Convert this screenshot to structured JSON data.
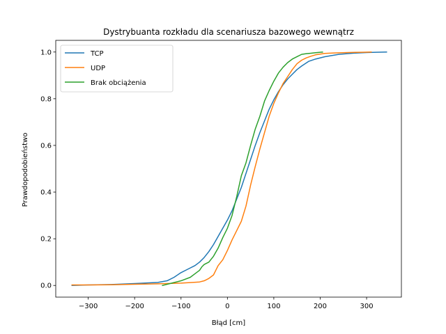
{
  "chart_data": {
    "type": "line",
    "title": "Dystrybuanta rozkładu dla scenariusza bazowego wewnątrz",
    "xlabel": "Błąd [cm]",
    "ylabel": "Prawdopodobieństwo",
    "xlim": [
      -370,
      375
    ],
    "ylim": [
      -0.05,
      1.05
    ],
    "xticks": [
      -300,
      -200,
      -100,
      0,
      100,
      200,
      300
    ],
    "xtick_labels": [
      "−300",
      "−200",
      "−100",
      "0",
      "100",
      "200",
      "300"
    ],
    "yticks": [
      0.0,
      0.2,
      0.4,
      0.6,
      0.8,
      1.0
    ],
    "ytick_labels": [
      "0.0",
      "0.2",
      "0.4",
      "0.6",
      "0.8",
      "1.0"
    ],
    "grid": false,
    "legend_position": "top-left",
    "series": [
      {
        "name": "TCP",
        "color": "#1f77b4",
        "x": [
          -335,
          -300,
          -250,
          -200,
          -150,
          -130,
          -115,
          -100,
          -85,
          -70,
          -60,
          -50,
          -40,
          -30,
          -20,
          -10,
          0,
          10,
          20,
          30,
          40,
          50,
          60,
          70,
          80,
          90,
          100,
          110,
          120,
          130,
          140,
          150,
          160,
          175,
          190,
          210,
          240,
          270,
          300,
          320,
          343
        ],
        "y": [
          0.0,
          0.002,
          0.004,
          0.008,
          0.013,
          0.02,
          0.035,
          0.055,
          0.07,
          0.085,
          0.1,
          0.12,
          0.145,
          0.175,
          0.21,
          0.245,
          0.28,
          0.32,
          0.37,
          0.42,
          0.48,
          0.54,
          0.6,
          0.655,
          0.705,
          0.755,
          0.795,
          0.83,
          0.86,
          0.885,
          0.905,
          0.925,
          0.94,
          0.96,
          0.97,
          0.98,
          0.99,
          0.995,
          0.998,
          0.999,
          1.0
        ]
      },
      {
        "name": "UDP",
        "color": "#ff7f0e",
        "x": [
          -335,
          -300,
          -250,
          -200,
          -150,
          -100,
          -75,
          -60,
          -50,
          -40,
          -30,
          -20,
          -10,
          0,
          10,
          20,
          30,
          40,
          50,
          60,
          70,
          80,
          90,
          100,
          110,
          120,
          130,
          140,
          150,
          160,
          170,
          180,
          190,
          200,
          210,
          230,
          260,
          290,
          310
        ],
        "y": [
          0.002,
          0.002,
          0.003,
          0.005,
          0.007,
          0.01,
          0.013,
          0.015,
          0.02,
          0.03,
          0.045,
          0.085,
          0.11,
          0.15,
          0.195,
          0.235,
          0.275,
          0.34,
          0.43,
          0.51,
          0.585,
          0.655,
          0.725,
          0.78,
          0.825,
          0.865,
          0.895,
          0.925,
          0.95,
          0.965,
          0.975,
          0.982,
          0.988,
          0.991,
          0.994,
          0.996,
          0.998,
          0.999,
          1.0
        ]
      },
      {
        "name": "Brak obciążenia",
        "color": "#2ca02c",
        "x": [
          -140,
          -120,
          -100,
          -80,
          -70,
          -60,
          -55,
          -50,
          -40,
          -30,
          -20,
          -10,
          0,
          10,
          20,
          30,
          40,
          50,
          60,
          70,
          80,
          90,
          100,
          110,
          120,
          130,
          140,
          150,
          160,
          170,
          180,
          190,
          200,
          205
        ],
        "y": [
          0.0,
          0.01,
          0.02,
          0.035,
          0.05,
          0.065,
          0.08,
          0.09,
          0.1,
          0.125,
          0.16,
          0.205,
          0.245,
          0.3,
          0.38,
          0.47,
          0.525,
          0.6,
          0.67,
          0.725,
          0.79,
          0.835,
          0.875,
          0.91,
          0.935,
          0.955,
          0.97,
          0.98,
          0.99,
          0.993,
          0.995,
          0.997,
          0.999,
          1.0
        ]
      }
    ]
  }
}
